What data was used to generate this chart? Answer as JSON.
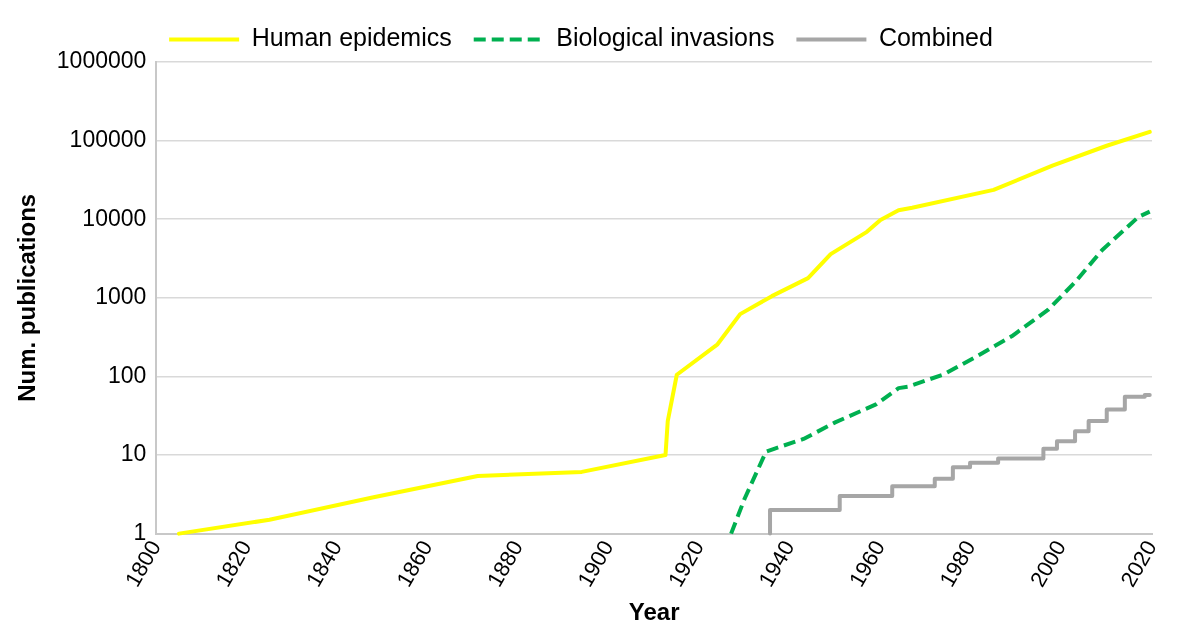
{
  "chart_data": {
    "type": "line",
    "xlabel": "Year",
    "ylabel": "Num. publications",
    "log": "y",
    "grid": "y",
    "legend": "top",
    "marker": "none",
    "xlim": [
      1800,
      2020
    ],
    "xticks": [
      1800,
      1820,
      1840,
      1860,
      1880,
      1900,
      1920,
      1940,
      1960,
      1980,
      2000,
      2020
    ],
    "ylim": [
      1,
      1000000
    ],
    "yticks": [
      1,
      10,
      100,
      1000,
      10000,
      100000,
      1000000
    ],
    "series": [
      {
        "name": "Human epidemics",
        "color": "#ffff00",
        "line_style": "solid",
        "x": [
          1805,
          1825,
          1848,
          1871,
          1894,
          1912.5,
          1913,
          1915,
          1924,
          1929,
          1936,
          1944,
          1949,
          1957,
          1960,
          1964,
          1967,
          1985,
          1998,
          2010,
          2019.5
        ],
        "values": [
          1,
          1.5,
          2.9,
          5.4,
          6.1,
          10,
          27,
          105,
          256,
          620,
          1050,
          1780,
          3600,
          6900,
          9800,
          13000,
          14000,
          23600,
          48000,
          86000,
          129000
        ]
      },
      {
        "name": "Biological invasions",
        "color": "#00b050",
        "line_style": "dashed",
        "x": [
          1927,
          1930,
          1934.7,
          1936.5,
          1943,
          1950,
          1959,
          1964,
          1966,
          1974,
          1982,
          1989,
          1997,
          2003,
          2009,
          2017,
          2019.5
        ],
        "values": [
          1,
          2.8,
          11,
          12,
          16,
          26,
          44,
          71,
          74,
          106,
          190,
          324,
          700,
          1580,
          4060,
          10700,
          12500
        ]
      },
      {
        "name": "Combined",
        "type": "step",
        "color": "#a6a6a6",
        "line_style": "solid",
        "x": [
          1935.6,
          1951,
          1962.6,
          1972,
          1976,
          1979.8,
          1986,
          1989,
          1996,
          1999,
          2003,
          2006,
          2010,
          2014,
          2018.4,
          2019.5
        ],
        "values": [
          1,
          2,
          3,
          4,
          5,
          7,
          8,
          9,
          9,
          12,
          15,
          20,
          27,
          38,
          55,
          58
        ]
      }
    ]
  }
}
